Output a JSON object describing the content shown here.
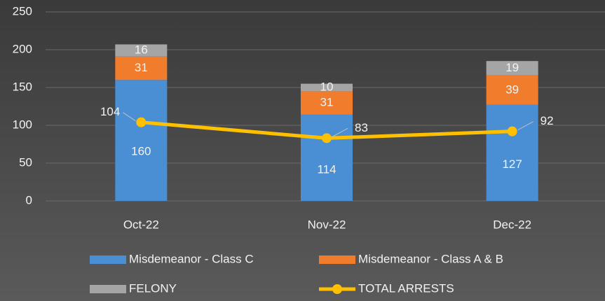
{
  "chart_data": {
    "type": "bar",
    "stacked": true,
    "categories": [
      "Oct-22",
      "Nov-22",
      "Dec-22"
    ],
    "series": [
      {
        "name": "Misdemeanor - Class C",
        "color": "#4a8fd4",
        "values": [
          160,
          114,
          127
        ]
      },
      {
        "name": "Misdemeanor - Class A & B",
        "color": "#f07c2c",
        "values": [
          31,
          31,
          39
        ]
      },
      {
        "name": "FELONY",
        "color": "#a5a5a5",
        "values": [
          16,
          10,
          19
        ]
      },
      {
        "name": "TOTAL ARRESTS",
        "type": "line",
        "color": "#ffc000",
        "values": [
          104,
          83,
          92
        ]
      }
    ],
    "ylim": [
      0,
      250
    ],
    "yticks": [
      0,
      50,
      100,
      150,
      200,
      250
    ],
    "grid": true
  }
}
